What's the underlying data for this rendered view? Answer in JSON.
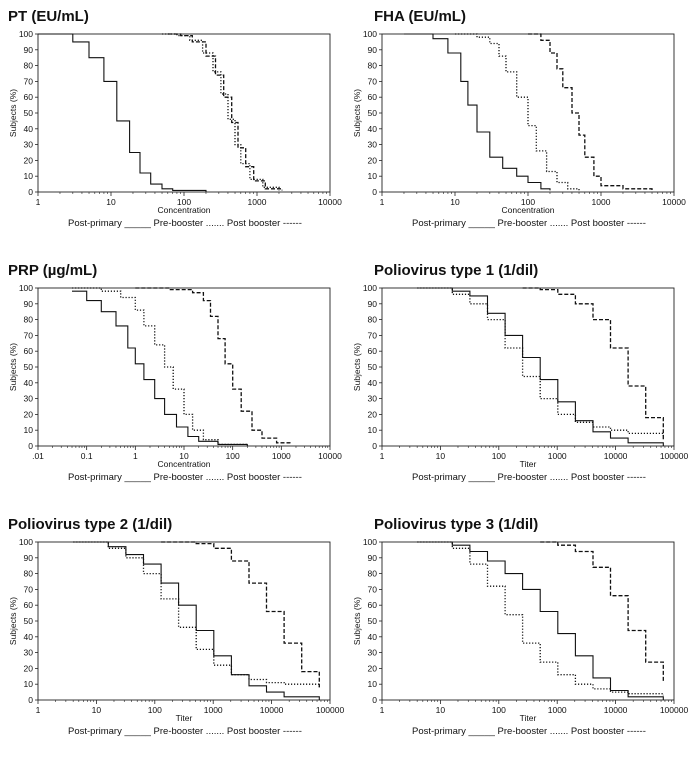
{
  "chart_data": [
    {
      "type": "line",
      "title": "PT (EU/mL)",
      "xlabel": "Concentration",
      "ylabel": "Subjects (%)",
      "xscale": "log",
      "xlim": [
        1,
        10000
      ],
      "ylim": [
        0,
        100
      ],
      "xticks": [
        "1",
        "10",
        "100",
        "1000",
        "10000"
      ],
      "yticks": [
        "0",
        "10",
        "20",
        "30",
        "40",
        "50",
        "60",
        "70",
        "80",
        "90",
        "100"
      ],
      "legend_text": "Post-primary _____ Pre-booster ....... Post booster ------",
      "series": [
        {
          "name": "Post-primary",
          "style": "solid",
          "x": [
            1,
            2,
            3,
            5,
            8,
            12,
            18,
            25,
            35,
            50,
            70,
            200
          ],
          "y": [
            100,
            100,
            95,
            85,
            70,
            45,
            25,
            12,
            5,
            2,
            1,
            0
          ]
        },
        {
          "name": "Pre-booster",
          "style": "dotted",
          "x": [
            50,
            80,
            120,
            180,
            250,
            320,
            400,
            500,
            600,
            800,
            1200,
            2000
          ],
          "y": [
            100,
            99,
            96,
            88,
            76,
            62,
            46,
            30,
            18,
            8,
            3,
            1
          ]
        },
        {
          "name": "Post booster",
          "style": "dashed",
          "x": [
            60,
            90,
            130,
            200,
            270,
            350,
            450,
            550,
            700,
            900,
            1300,
            2200
          ],
          "y": [
            100,
            99,
            95,
            86,
            74,
            60,
            44,
            28,
            16,
            7,
            2,
            1
          ]
        }
      ]
    },
    {
      "type": "line",
      "title": "FHA (EU/mL)",
      "xlabel": "Concentration",
      "ylabel": "Subjects (%)",
      "xscale": "log",
      "xlim": [
        1,
        10000
      ],
      "ylim": [
        0,
        100
      ],
      "xticks": [
        "1",
        "10",
        "100",
        "1000",
        "10000"
      ],
      "yticks": [
        "0",
        "10",
        "20",
        "30",
        "40",
        "50",
        "60",
        "70",
        "80",
        "90",
        "100"
      ],
      "legend_text": "Post-primary _____ Pre-booster ....... Post booster ------",
      "series": [
        {
          "name": "Post-primary",
          "style": "solid",
          "x": [
            2,
            5,
            8,
            12,
            15,
            20,
            30,
            45,
            70,
            100,
            150,
            200
          ],
          "y": [
            100,
            97,
            88,
            70,
            55,
            38,
            22,
            15,
            10,
            6,
            2,
            1
          ]
        },
        {
          "name": "Pre-booster",
          "style": "dotted",
          "x": [
            10,
            20,
            30,
            40,
            50,
            70,
            100,
            130,
            180,
            250,
            350,
            500
          ],
          "y": [
            100,
            98,
            94,
            86,
            76,
            60,
            42,
            26,
            13,
            6,
            2,
            1
          ]
        },
        {
          "name": "Post booster",
          "style": "dashed",
          "x": [
            100,
            150,
            200,
            250,
            300,
            400,
            500,
            600,
            800,
            1000,
            2000,
            5000
          ],
          "y": [
            100,
            96,
            88,
            78,
            66,
            50,
            36,
            22,
            10,
            4,
            2,
            1
          ]
        }
      ]
    },
    {
      "type": "line",
      "title": "PRP (µg/mL)",
      "xlabel": "Concentration",
      "ylabel": "Subjects (%)",
      "xscale": "log",
      "xlim": [
        0.01,
        10000
      ],
      "ylim": [
        0,
        100
      ],
      "xticks": [
        ".01",
        "0.1",
        "1",
        "10",
        "100",
        "1000",
        "10000"
      ],
      "yticks": [
        "0",
        "10",
        "20",
        "30",
        "40",
        "50",
        "60",
        "70",
        "80",
        "90",
        "100"
      ],
      "legend_text": "Post-primary _____ Pre-booster ....... Post booster ------",
      "series": [
        {
          "name": "Post-primary",
          "style": "solid",
          "x": [
            0.05,
            0.1,
            0.2,
            0.4,
            0.7,
            1,
            1.5,
            2.5,
            4,
            7,
            12,
            20,
            50,
            200
          ],
          "y": [
            98,
            92,
            85,
            76,
            62,
            52,
            42,
            30,
            20,
            12,
            6,
            3,
            1,
            0
          ]
        },
        {
          "name": "Pre-booster",
          "style": "dotted",
          "x": [
            0.05,
            0.2,
            0.5,
            1,
            1.5,
            2.5,
            4,
            6,
            10,
            15,
            25,
            50,
            200
          ],
          "y": [
            100,
            98,
            94,
            86,
            76,
            64,
            50,
            36,
            20,
            10,
            4,
            1,
            0
          ]
        },
        {
          "name": "Post booster",
          "style": "dashed",
          "x": [
            1,
            5,
            15,
            25,
            35,
            50,
            70,
            100,
            150,
            250,
            400,
            800,
            1500
          ],
          "y": [
            100,
            99,
            97,
            92,
            82,
            68,
            52,
            36,
            22,
            10,
            5,
            2,
            1
          ]
        }
      ]
    },
    {
      "type": "line",
      "title": "Poliovirus type 1 (1/dil)",
      "xlabel": "Titer",
      "ylabel": "Subjects (%)",
      "xscale": "log",
      "xlim": [
        1,
        100000
      ],
      "ylim": [
        0,
        100
      ],
      "xticks": [
        "1",
        "10",
        "100",
        "1000",
        "10000",
        "100000"
      ],
      "yticks": [
        "0",
        "10",
        "20",
        "30",
        "40",
        "50",
        "60",
        "70",
        "80",
        "90",
        "100"
      ],
      "legend_text": "Post-primary _____ Pre-booster ....... Post booster ------",
      "series": [
        {
          "name": "Post-primary",
          "style": "solid",
          "x": [
            4,
            16,
            32,
            64,
            128,
            256,
            512,
            1024,
            2048,
            4096,
            8192,
            16384,
            65536
          ],
          "y": [
            100,
            98,
            95,
            84,
            70,
            56,
            42,
            28,
            16,
            9,
            5,
            2,
            0
          ]
        },
        {
          "name": "Pre-booster",
          "style": "dotted",
          "x": [
            4,
            16,
            32,
            64,
            128,
            256,
            512,
            1024,
            2048,
            4096,
            8192,
            16384,
            65536
          ],
          "y": [
            100,
            96,
            90,
            80,
            62,
            44,
            30,
            20,
            15,
            12,
            10,
            8,
            5
          ]
        },
        {
          "name": "Post booster",
          "style": "dashed",
          "x": [
            256,
            512,
            1024,
            2048,
            4096,
            8192,
            16384,
            32768,
            65536
          ],
          "y": [
            100,
            99,
            96,
            90,
            80,
            62,
            38,
            18,
            4
          ]
        }
      ]
    },
    {
      "type": "line",
      "title": "Poliovirus type 2 (1/dil)",
      "xlabel": "Titer",
      "ylabel": "Subjects (%)",
      "xscale": "log",
      "xlim": [
        1,
        100000
      ],
      "ylim": [
        0,
        100
      ],
      "xticks": [
        "1",
        "10",
        "100",
        "1000",
        "10000",
        "100000"
      ],
      "yticks": [
        "0",
        "10",
        "20",
        "30",
        "40",
        "50",
        "60",
        "70",
        "80",
        "90",
        "100"
      ],
      "legend_text": "Post-primary _____ Pre-booster ....... Post booster ------",
      "series": [
        {
          "name": "Post-primary",
          "style": "solid",
          "x": [
            4,
            16,
            32,
            64,
            128,
            256,
            512,
            1024,
            2048,
            4096,
            8192,
            16384,
            65536
          ],
          "y": [
            100,
            97,
            92,
            86,
            74,
            60,
            44,
            28,
            16,
            9,
            5,
            2,
            0
          ]
        },
        {
          "name": "Pre-booster",
          "style": "dotted",
          "x": [
            4,
            16,
            32,
            64,
            128,
            256,
            512,
            1024,
            2048,
            4096,
            8192,
            16384,
            65536
          ],
          "y": [
            100,
            96,
            90,
            80,
            64,
            46,
            32,
            22,
            16,
            13,
            11,
            10,
            8
          ]
        },
        {
          "name": "Post booster",
          "style": "dashed",
          "x": [
            128,
            512,
            1024,
            2048,
            4096,
            8192,
            16384,
            32768,
            65536
          ],
          "y": [
            100,
            99,
            96,
            88,
            74,
            56,
            36,
            18,
            8
          ]
        }
      ]
    },
    {
      "type": "line",
      "title": "Poliovirus type 3 (1/dil)",
      "xlabel": "Titer",
      "ylabel": "Subjects (%)",
      "xscale": "log",
      "xlim": [
        1,
        100000
      ],
      "ylim": [
        0,
        100
      ],
      "xticks": [
        "1",
        "10",
        "100",
        "1000",
        "10000",
        "100000"
      ],
      "yticks": [
        "0",
        "10",
        "20",
        "30",
        "40",
        "50",
        "60",
        "70",
        "80",
        "90",
        "100"
      ],
      "legend_text": "Post-primary _____ Pre-booster ....... Post booster ------",
      "series": [
        {
          "name": "Post-primary",
          "style": "solid",
          "x": [
            4,
            16,
            32,
            64,
            128,
            256,
            512,
            1024,
            2048,
            4096,
            8192,
            16384,
            65536
          ],
          "y": [
            100,
            98,
            94,
            88,
            80,
            70,
            56,
            42,
            28,
            14,
            6,
            2,
            0
          ]
        },
        {
          "name": "Pre-booster",
          "style": "dotted",
          "x": [
            4,
            16,
            32,
            64,
            128,
            256,
            512,
            1024,
            2048,
            4096,
            8192,
            16384,
            65536
          ],
          "y": [
            100,
            96,
            86,
            72,
            54,
            36,
            24,
            16,
            10,
            7,
            5,
            4,
            3
          ]
        },
        {
          "name": "Post booster",
          "style": "dashed",
          "x": [
            512,
            1024,
            2048,
            4096,
            8192,
            16384,
            32768,
            65536
          ],
          "y": [
            100,
            98,
            94,
            84,
            66,
            44,
            24,
            12
          ]
        }
      ]
    }
  ]
}
